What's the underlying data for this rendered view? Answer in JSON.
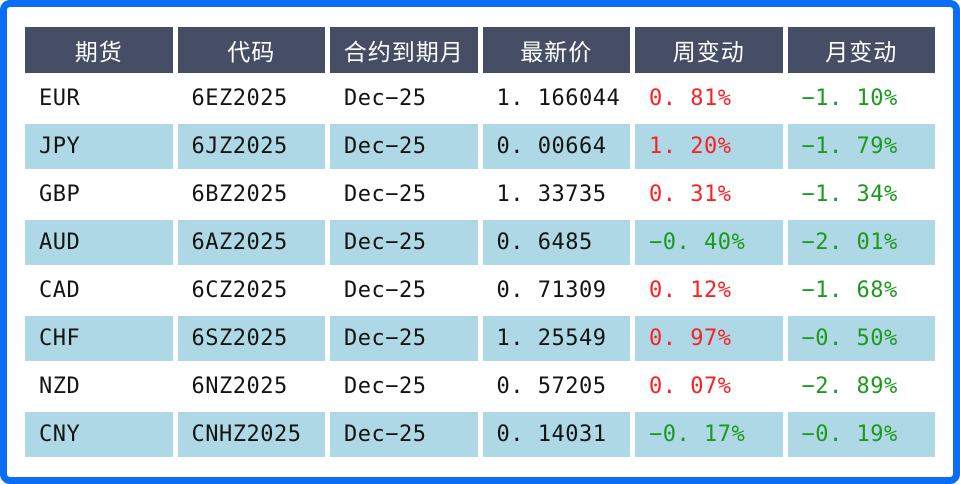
{
  "chart_data": {
    "type": "table",
    "title": "",
    "columns": [
      "期货",
      "代码",
      "合约到期月",
      "最新价",
      "周变动",
      "月变动"
    ],
    "rows": [
      [
        "EUR",
        "6EZ2025",
        "Dec−25",
        "1. 166044",
        "0. 81%",
        "−1. 10%"
      ],
      [
        "JPY",
        "6JZ2025",
        "Dec−25",
        "0. 00664",
        "1. 20%",
        "−1. 79%"
      ],
      [
        "GBP",
        "6BZ2025",
        "Dec−25",
        "1. 33735",
        "0. 31%",
        "−1. 34%"
      ],
      [
        "AUD",
        "6AZ2025",
        "Dec−25",
        "0. 6485",
        "−0. 40%",
        "−2. 01%"
      ],
      [
        "CAD",
        "6CZ2025",
        "Dec−25",
        "0. 71309",
        "0. 12%",
        "−1. 68%"
      ],
      [
        "CHF",
        "6SZ2025",
        "Dec−25",
        "1. 25549",
        "0. 97%",
        "−0. 50%"
      ],
      [
        "NZD",
        "6NZ2025",
        "Dec−25",
        "0. 57205",
        "0. 07%",
        "−2. 89%"
      ],
      [
        "CNY",
        "CNHZ2025",
        "Dec−25",
        "0. 14031",
        "−0. 17%",
        "−0. 19%"
      ]
    ]
  },
  "colors": {
    "frame_blue": "#0b6cf4",
    "header_bg": "#464e65",
    "header_text": "#ffffff",
    "row_alt_bg": "#aed8e6",
    "positive_change_red": "#f92121",
    "negative_change_green": "#1b9a1b"
  }
}
